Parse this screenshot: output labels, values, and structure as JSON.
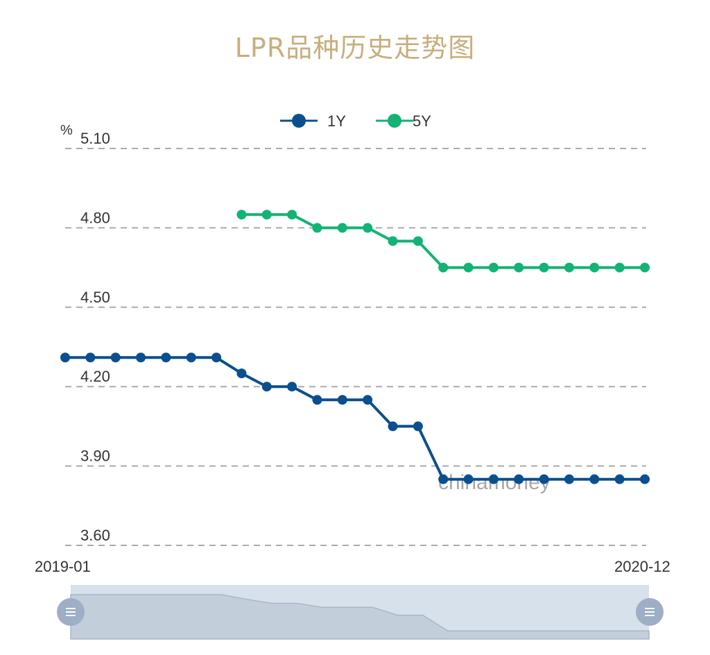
{
  "title": "LPR品种历史走势图",
  "colors": {
    "title": "#C8AE7D",
    "series_1y": "#0B4F8F",
    "series_5y": "#12B374",
    "grid": "#AAAAAA",
    "slider_bg": "#D7E1EC",
    "slider_handle": "#9DAEC5"
  },
  "watermark": "chinamoney",
  "chart_data": {
    "type": "line",
    "unit": "%",
    "x_start_label": "2019-01",
    "x_end_label": "2020-12",
    "yticks": [
      "5.10",
      "4.80",
      "4.50",
      "4.20",
      "3.90",
      "3.60"
    ],
    "ylim": [
      3.6,
      5.1
    ],
    "grid": true,
    "legend_position": "top-center",
    "x": [
      "2019-01",
      "2019-02",
      "2019-03",
      "2019-04",
      "2019-05",
      "2019-06",
      "2019-07",
      "2019-08",
      "2019-09",
      "2019-10",
      "2019-11",
      "2019-12",
      "2020-01",
      "2020-02",
      "2020-03",
      "2020-04",
      "2020-05",
      "2020-06",
      "2020-07",
      "2020-08",
      "2020-09",
      "2020-10",
      "2020-11",
      "2020-12"
    ],
    "series": [
      {
        "name": "1Y",
        "values": [
          4.31,
          4.31,
          4.31,
          4.31,
          4.31,
          4.31,
          4.31,
          4.25,
          4.2,
          4.2,
          4.15,
          4.15,
          4.15,
          4.05,
          4.05,
          3.85,
          3.85,
          3.85,
          3.85,
          3.85,
          3.85,
          3.85,
          3.85,
          3.85
        ]
      },
      {
        "name": "5Y",
        "values": [
          null,
          null,
          null,
          null,
          null,
          null,
          null,
          4.85,
          4.85,
          4.85,
          4.8,
          4.8,
          4.8,
          4.75,
          4.75,
          4.65,
          4.65,
          4.65,
          4.65,
          4.65,
          4.65,
          4.65,
          4.65,
          4.65
        ]
      }
    ]
  }
}
